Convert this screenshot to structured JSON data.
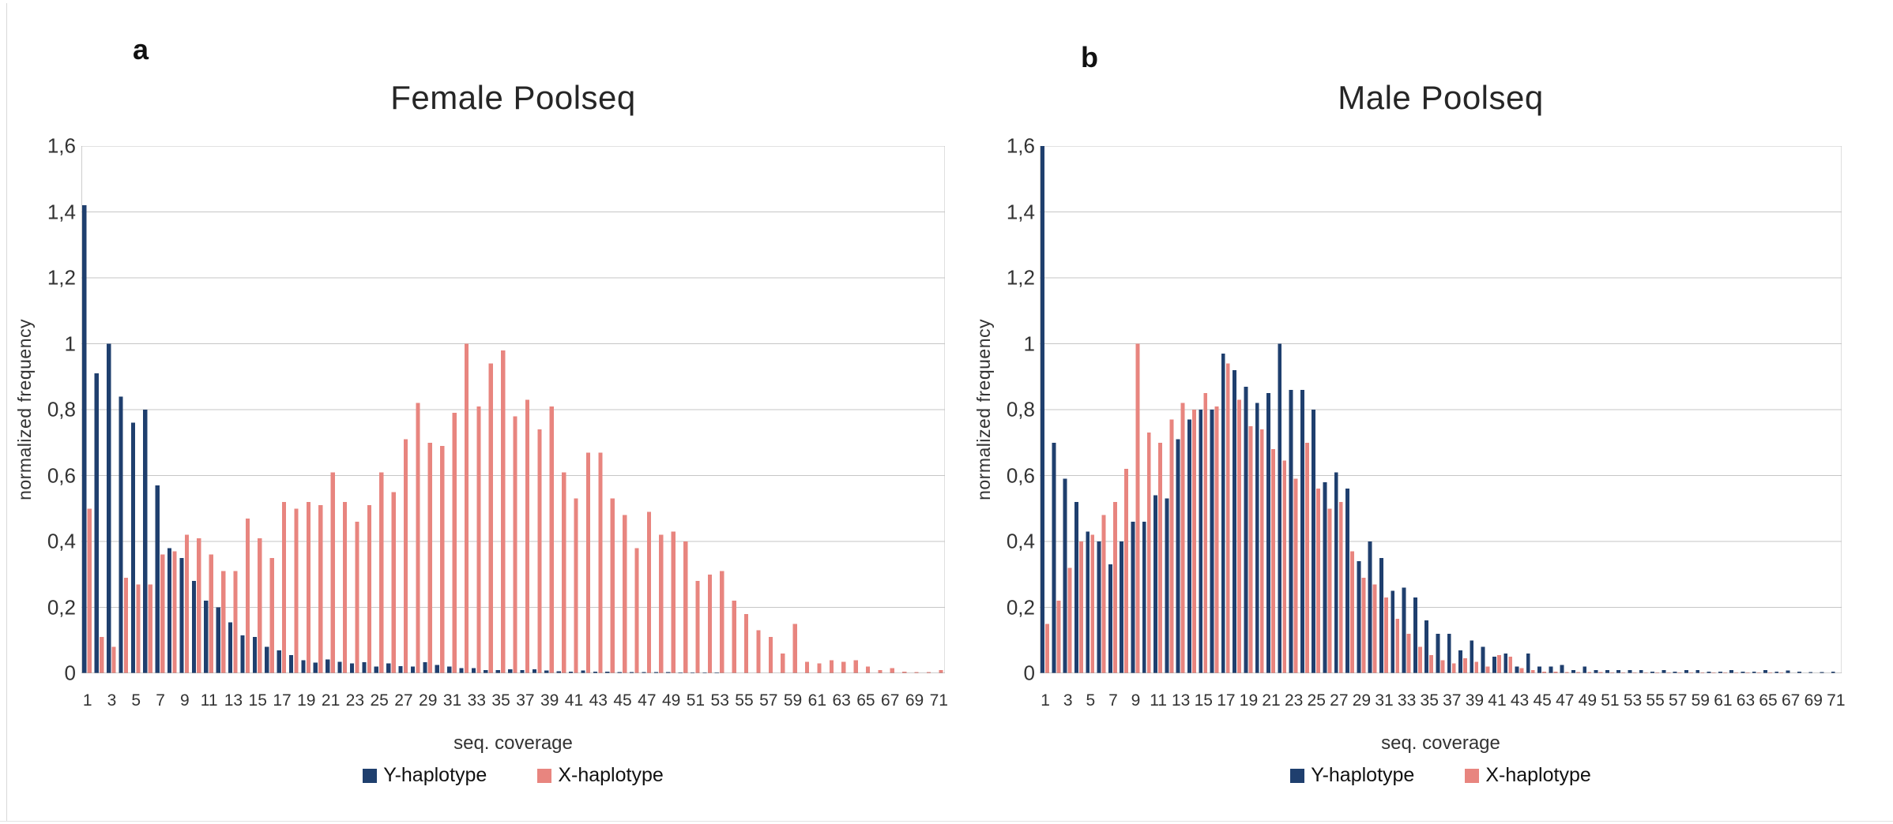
{
  "panels": [
    {
      "letter": "a"
    },
    {
      "letter": "b"
    }
  ],
  "colors": {
    "y_haplotype": "#1f3f6e",
    "x_haplotype": "#e8857f",
    "gridline": "#c6c6c6",
    "axis_line": "#9e9e9e",
    "border_line": "#bfbfbf"
  },
  "chart_data": [
    {
      "type": "bar",
      "title": "Female Poolseq",
      "xlabel": "seq. coverage",
      "ylabel": "normalized frequency",
      "ylim": [
        0,
        1.6
      ],
      "grid": true,
      "legend_position": "bottom",
      "y_tick_labels": [
        "1,6",
        "1,4",
        "1,2",
        "1",
        "0,8",
        "0,6",
        "0,4",
        "0,2",
        "0"
      ],
      "x_tick_labels": [
        "1",
        "3",
        "5",
        "7",
        "9",
        "11",
        "13",
        "15",
        "17",
        "19",
        "21",
        "23",
        "25",
        "27",
        "29",
        "31",
        "33",
        "35",
        "37",
        "39",
        "41",
        "43",
        "45",
        "47",
        "49",
        "51",
        "53",
        "55",
        "57",
        "59",
        "61",
        "63",
        "65",
        "67",
        "69",
        "71"
      ],
      "x_range": [
        1,
        71
      ],
      "series": [
        {
          "name": "Y-haplotype",
          "color": "#1f3f6e",
          "values": [
            1.42,
            0.91,
            1.0,
            0.84,
            0.76,
            0.8,
            0.57,
            0.38,
            0.35,
            0.28,
            0.22,
            0.2,
            0.155,
            0.115,
            0.11,
            0.08,
            0.07,
            0.055,
            0.04,
            0.032,
            0.042,
            0.035,
            0.03,
            0.033,
            0.02,
            0.03,
            0.022,
            0.02,
            0.033,
            0.025,
            0.02,
            0.015,
            0.015,
            0.01,
            0.01,
            0.012,
            0.01,
            0.012,
            0.008,
            0.006,
            0.005,
            0.008,
            0.005,
            0.005,
            0.004,
            0.004,
            0.003,
            0.003,
            0.003,
            0.002,
            0.002,
            0.002,
            0.002,
            0.001,
            0.001,
            0.001,
            0.001,
            0.001,
            0.001,
            0,
            0,
            0,
            0,
            0,
            0,
            0,
            0,
            0,
            0,
            0,
            0
          ]
        },
        {
          "name": "X-haplotype",
          "color": "#e8857f",
          "values": [
            0.5,
            0.11,
            0.08,
            0.29,
            0.27,
            0.27,
            0.36,
            0.37,
            0.42,
            0.41,
            0.36,
            0.31,
            0.31,
            0.47,
            0.41,
            0.35,
            0.52,
            0.5,
            0.52,
            0.51,
            0.61,
            0.52,
            0.46,
            0.51,
            0.61,
            0.55,
            0.71,
            0.82,
            0.7,
            0.69,
            0.79,
            1.0,
            0.81,
            0.94,
            0.98,
            0.78,
            0.83,
            0.74,
            0.81,
            0.61,
            0.53,
            0.67,
            0.67,
            0.53,
            0.48,
            0.38,
            0.49,
            0.42,
            0.43,
            0.4,
            0.28,
            0.3,
            0.31,
            0.22,
            0.18,
            0.13,
            0.11,
            0.06,
            0.15,
            0.035,
            0.03,
            0.04,
            0.035,
            0.04,
            0.02,
            0.01,
            0.015,
            0.005,
            0.003,
            0.003,
            0.01
          ]
        }
      ]
    },
    {
      "type": "bar",
      "title": "Male Poolseq",
      "xlabel": "seq. coverage",
      "ylabel": "normalized frequency",
      "ylim": [
        0,
        1.6
      ],
      "grid": true,
      "legend_position": "bottom",
      "y_tick_labels": [
        "1,6",
        "1,4",
        "1,2",
        "1",
        "0,8",
        "0,6",
        "0,4",
        "0,2",
        "0"
      ],
      "x_tick_labels": [
        "1",
        "3",
        "5",
        "7",
        "9",
        "11",
        "13",
        "15",
        "17",
        "19",
        "21",
        "23",
        "25",
        "27",
        "29",
        "31",
        "33",
        "35",
        "37",
        "39",
        "41",
        "43",
        "45",
        "47",
        "49",
        "51",
        "53",
        "55",
        "57",
        "59",
        "61",
        "63",
        "65",
        "67",
        "69",
        "71"
      ],
      "x_range": [
        1,
        71
      ],
      "series": [
        {
          "name": "Y-haplotype",
          "color": "#1f3f6e",
          "values": [
            1.6,
            0.7,
            0.59,
            0.52,
            0.43,
            0.4,
            0.33,
            0.4,
            0.46,
            0.46,
            0.54,
            0.53,
            0.71,
            0.77,
            0.8,
            0.8,
            0.97,
            0.92,
            0.87,
            0.82,
            0.85,
            1.0,
            0.86,
            0.86,
            0.8,
            0.58,
            0.61,
            0.56,
            0.34,
            0.4,
            0.35,
            0.25,
            0.26,
            0.23,
            0.16,
            0.12,
            0.12,
            0.07,
            0.1,
            0.08,
            0.05,
            0.06,
            0.02,
            0.06,
            0.02,
            0.02,
            0.025,
            0.01,
            0.02,
            0.01,
            0.01,
            0.01,
            0.01,
            0.01,
            0.005,
            0.01,
            0.005,
            0.01,
            0.01,
            0.005,
            0.005,
            0.01,
            0.005,
            0.005,
            0.01,
            0.005,
            0.008,
            0.005,
            0.003,
            0.003,
            0.005
          ]
        },
        {
          "name": "X-haplotype",
          "color": "#e8857f",
          "values": [
            0.15,
            0.22,
            0.32,
            0.4,
            0.42,
            0.48,
            0.52,
            0.62,
            1.0,
            0.73,
            0.7,
            0.77,
            0.82,
            0.8,
            0.85,
            0.81,
            0.94,
            0.83,
            0.75,
            0.74,
            0.68,
            0.645,
            0.59,
            0.7,
            0.56,
            0.5,
            0.52,
            0.37,
            0.29,
            0.27,
            0.23,
            0.165,
            0.12,
            0.08,
            0.055,
            0.04,
            0.03,
            0.045,
            0.035,
            0.02,
            0.055,
            0.05,
            0.015,
            0.01,
            0.005,
            0.005,
            0.003,
            0.003,
            0.003,
            0.003,
            0.002,
            0.002,
            0.002,
            0.002,
            0.002,
            0.002,
            0.002,
            0.002,
            0.002,
            0.002,
            0.002,
            0.002,
            0.002,
            0.002,
            0.002,
            0.002,
            0,
            0,
            0,
            0,
            0
          ]
        }
      ]
    }
  ]
}
